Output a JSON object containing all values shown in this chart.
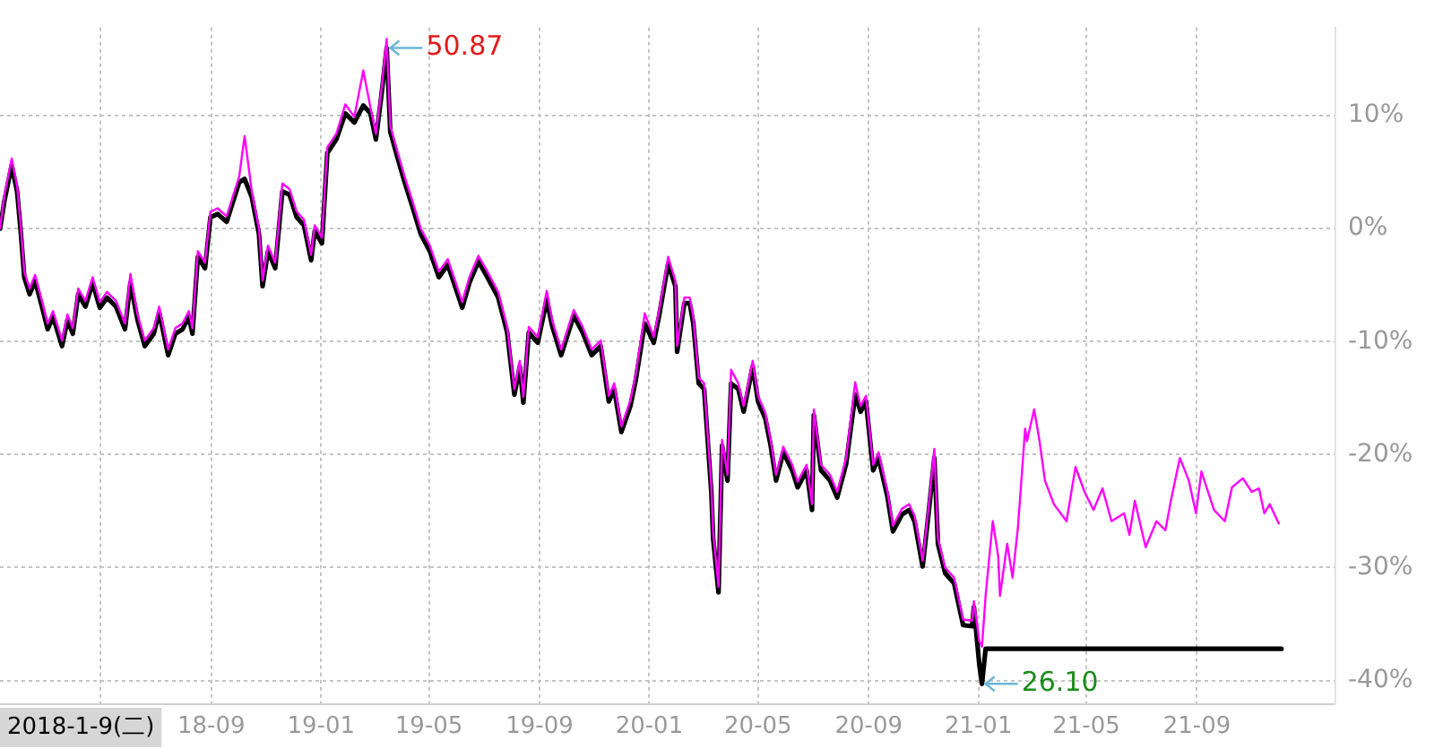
{
  "chart_data": {
    "type": "line",
    "xlim": [
      "2018-01-09",
      "2022-02-02"
    ],
    "ylim": [
      -42.1,
      17.8
    ],
    "xticks": [
      {
        "value": "2018-05-01",
        "label": null
      },
      {
        "value": "2018-09-01",
        "label": "18-09"
      },
      {
        "value": "2019-01-01",
        "label": "19-01"
      },
      {
        "value": "2019-05-01",
        "label": "19-05"
      },
      {
        "value": "2019-09-01",
        "label": "19-09"
      },
      {
        "value": "2020-01-01",
        "label": "20-01"
      },
      {
        "value": "2020-05-01",
        "label": "20-05"
      },
      {
        "value": "2020-09-01",
        "label": "20-09"
      },
      {
        "value": "2021-01-01",
        "label": "21-01"
      },
      {
        "value": "2021-05-01",
        "label": "21-05"
      },
      {
        "value": "2021-09-01",
        "label": "21-09"
      }
    ],
    "yticks": [
      {
        "value": 10,
        "label": "10%"
      },
      {
        "value": 0,
        "label": "0%"
      },
      {
        "value": -10,
        "label": "-10%"
      },
      {
        "value": -20,
        "label": "-20%"
      },
      {
        "value": -30,
        "label": "-30%"
      },
      {
        "value": -40,
        "label": "-40%"
      }
    ],
    "grid": true,
    "legend": false,
    "marker": "none",
    "annotations": [
      "2018-1-9(二)",
      {
        "text": "50.87",
        "x": "2019-03-15",
        "y": 16.0
      },
      {
        "text": "26.10",
        "x": "2021-01-05",
        "y": -40.3
      }
    ],
    "series": [
      {
        "color": "#000000",
        "x": [
          "2018-01-09",
          "2018-01-14",
          "2018-01-22",
          "2018-01-28",
          "2018-02-01",
          "2018-02-05",
          "2018-02-11",
          "2018-02-17",
          "2018-02-25",
          "2018-03-03",
          "2018-03-09",
          "2018-03-19",
          "2018-03-25",
          "2018-03-31",
          "2018-04-06",
          "2018-04-14",
          "2018-04-22",
          "2018-04-30",
          "2018-05-08",
          "2018-05-18",
          "2018-05-28",
          "2018-06-03",
          "2018-06-11",
          "2018-06-19",
          "2018-06-29",
          "2018-07-05",
          "2018-07-15",
          "2018-07-23",
          "2018-07-31",
          "2018-08-07",
          "2018-08-11",
          "2018-08-17",
          "2018-08-25",
          "2018-08-31",
          "2018-09-08",
          "2018-09-18",
          "2018-09-24",
          "2018-10-02",
          "2018-10-08",
          "2018-10-16",
          "2018-10-24",
          "2018-10-28",
          "2018-11-03",
          "2018-11-11",
          "2018-11-19",
          "2018-11-27",
          "2018-12-05",
          "2018-12-13",
          "2018-12-21",
          "2018-12-25",
          "2019-01-02",
          "2019-01-08",
          "2019-01-18",
          "2019-01-28",
          "2019-02-07",
          "2019-02-17",
          "2019-02-25",
          "2019-03-03",
          "2019-03-09",
          "2019-03-15",
          "2019-03-19",
          "2019-03-27",
          "2019-04-04",
          "2019-04-12",
          "2019-04-22",
          "2019-05-02",
          "2019-05-12",
          "2019-05-22",
          "2019-05-30",
          "2019-06-07",
          "2019-06-15",
          "2019-06-25",
          "2019-07-05",
          "2019-07-17",
          "2019-07-27",
          "2019-08-04",
          "2019-08-10",
          "2019-08-14",
          "2019-08-20",
          "2019-08-30",
          "2019-09-09",
          "2019-09-15",
          "2019-09-25",
          "2019-10-09",
          "2019-10-19",
          "2019-10-29",
          "2019-11-08",
          "2019-11-17",
          "2019-11-23",
          "2019-12-01",
          "2019-12-11",
          "2019-12-17",
          "2019-12-27",
          "2020-01-06",
          "2020-01-12",
          "2020-01-22",
          "2020-01-30",
          "2020-02-01",
          "2020-02-09",
          "2020-02-15",
          "2020-02-19",
          "2020-02-25",
          "2020-03-02",
          "2020-03-10",
          "2020-03-12",
          "2020-03-18",
          "2020-03-22",
          "2020-03-28",
          "2020-04-01",
          "2020-04-09",
          "2020-04-15",
          "2020-04-25",
          "2020-05-01",
          "2020-05-09",
          "2020-05-15",
          "2020-05-21",
          "2020-05-29",
          "2020-06-08",
          "2020-06-14",
          "2020-06-24",
          "2020-06-30",
          "2020-07-02",
          "2020-07-10",
          "2020-07-20",
          "2020-07-28",
          "2020-08-07",
          "2020-08-17",
          "2020-08-23",
          "2020-08-29",
          "2020-09-06",
          "2020-09-12",
          "2020-09-22",
          "2020-09-28",
          "2020-10-08",
          "2020-10-16",
          "2020-10-22",
          "2020-10-31",
          "2020-11-07",
          "2020-11-13",
          "2020-11-17",
          "2020-11-25",
          "2020-12-05",
          "2020-12-15",
          "2020-12-25",
          "2020-12-27",
          "2021-01-02",
          "2021-01-05",
          "2021-01-09",
          "2021-12-04"
        ],
        "values": [
          0.0,
          2.5,
          5.6,
          3.3,
          -0.2,
          -4.3,
          -5.8,
          -4.6,
          -7.0,
          -8.9,
          -7.8,
          -10.4,
          -8.1,
          -9.3,
          -5.8,
          -6.9,
          -4.8,
          -7.0,
          -6.1,
          -6.9,
          -8.9,
          -4.8,
          -8.1,
          -10.4,
          -9.3,
          -7.4,
          -11.2,
          -9.3,
          -8.9,
          -7.8,
          -9.3,
          -2.5,
          -3.5,
          1.0,
          1.3,
          0.6,
          2.1,
          4.1,
          4.4,
          2.8,
          -0.5,
          -5.1,
          -2.0,
          -3.5,
          3.3,
          3.0,
          1.0,
          0.3,
          -2.8,
          -0.2,
          -1.3,
          6.7,
          7.9,
          10.2,
          9.4,
          10.9,
          10.2,
          7.9,
          11.7,
          16.0,
          8.6,
          6.3,
          4.1,
          2.1,
          -0.5,
          -2.0,
          -4.3,
          -3.2,
          -5.1,
          -7.0,
          -4.8,
          -2.9,
          -4.3,
          -6.1,
          -9.2,
          -14.7,
          -12.2,
          -15.4,
          -9.2,
          -10.1,
          -6.3,
          -8.6,
          -11.2,
          -7.7,
          -9.2,
          -11.2,
          -10.4,
          -15.3,
          -14.2,
          -18.0,
          -15.7,
          -13.4,
          -8.4,
          -10.1,
          -7.7,
          -3.1,
          -5.1,
          -10.9,
          -6.6,
          -6.6,
          -8.4,
          -13.7,
          -14.2,
          -23.3,
          -27.4,
          -32.2,
          -19.2,
          -22.3,
          -13.7,
          -14.2,
          -16.2,
          -12.2,
          -15.3,
          -16.8,
          -19.2,
          -22.3,
          -19.8,
          -21.4,
          -22.9,
          -21.4,
          -24.9,
          -16.5,
          -21.4,
          -22.3,
          -23.8,
          -20.8,
          -14.7,
          -16.2,
          -15.3,
          -21.4,
          -20.3,
          -23.8,
          -26.8,
          -25.3,
          -24.9,
          -25.9,
          -29.9,
          -24.9,
          -20.3,
          -27.9,
          -30.5,
          -31.4,
          -35.1,
          -35.2,
          -33.5,
          -38.6,
          -40.3,
          -37.2,
          -37.2
        ]
      },
      {
        "color": "#ff00ff",
        "x": [
          "2018-01-09",
          "2018-01-14",
          "2018-01-22",
          "2018-01-28",
          "2018-02-01",
          "2018-02-05",
          "2018-02-11",
          "2018-02-17",
          "2018-02-25",
          "2018-03-03",
          "2018-03-09",
          "2018-03-19",
          "2018-03-25",
          "2018-03-31",
          "2018-04-06",
          "2018-04-14",
          "2018-04-22",
          "2018-04-30",
          "2018-05-08",
          "2018-05-18",
          "2018-05-28",
          "2018-06-03",
          "2018-06-11",
          "2018-06-19",
          "2018-06-29",
          "2018-07-05",
          "2018-07-15",
          "2018-07-23",
          "2018-07-31",
          "2018-08-07",
          "2018-08-11",
          "2018-08-17",
          "2018-08-25",
          "2018-08-31",
          "2018-09-08",
          "2018-09-18",
          "2018-09-24",
          "2018-10-02",
          "2018-10-08",
          "2018-10-16",
          "2018-10-24",
          "2018-10-28",
          "2018-11-03",
          "2018-11-11",
          "2018-11-19",
          "2018-11-27",
          "2018-12-05",
          "2018-12-13",
          "2018-12-21",
          "2018-12-25",
          "2019-01-02",
          "2019-01-08",
          "2019-01-18",
          "2019-01-28",
          "2019-02-07",
          "2019-02-17",
          "2019-02-25",
          "2019-03-03",
          "2019-03-09",
          "2019-03-15",
          "2019-03-19",
          "2019-03-27",
          "2019-04-04",
          "2019-04-12",
          "2019-04-22",
          "2019-05-02",
          "2019-05-12",
          "2019-05-22",
          "2019-05-30",
          "2019-06-07",
          "2019-06-15",
          "2019-06-25",
          "2019-07-05",
          "2019-07-17",
          "2019-07-27",
          "2019-08-04",
          "2019-08-10",
          "2019-08-14",
          "2019-08-20",
          "2019-08-30",
          "2019-09-09",
          "2019-09-15",
          "2019-09-25",
          "2019-10-09",
          "2019-10-19",
          "2019-10-29",
          "2019-11-08",
          "2019-11-17",
          "2019-11-23",
          "2019-12-01",
          "2019-12-11",
          "2019-12-17",
          "2019-12-27",
          "2020-01-06",
          "2020-01-12",
          "2020-01-22",
          "2020-01-30",
          "2020-02-01",
          "2020-02-09",
          "2020-02-15",
          "2020-02-19",
          "2020-02-25",
          "2020-03-02",
          "2020-03-10",
          "2020-03-12",
          "2020-03-18",
          "2020-03-22",
          "2020-03-28",
          "2020-04-01",
          "2020-04-09",
          "2020-04-15",
          "2020-04-25",
          "2020-05-01",
          "2020-05-09",
          "2020-05-15",
          "2020-05-21",
          "2020-05-29",
          "2020-06-08",
          "2020-06-14",
          "2020-06-24",
          "2020-06-30",
          "2020-07-02",
          "2020-07-10",
          "2020-07-20",
          "2020-07-28",
          "2020-08-07",
          "2020-08-17",
          "2020-08-23",
          "2020-08-29",
          "2020-09-06",
          "2020-09-12",
          "2020-09-22",
          "2020-09-28",
          "2020-10-08",
          "2020-10-16",
          "2020-10-22",
          "2020-10-31",
          "2020-11-07",
          "2020-11-13",
          "2020-11-17",
          "2020-11-25",
          "2020-12-05",
          "2020-12-15",
          "2020-12-25",
          "2020-12-27",
          "2021-01-02",
          "2021-01-05",
          "2021-01-09",
          "2021-01-17",
          "2021-01-23",
          "2021-01-25",
          "2021-02-02",
          "2021-02-08",
          "2021-02-14",
          "2021-02-22",
          "2021-02-24",
          "2021-03-04",
          "2021-03-10",
          "2021-03-16",
          "2021-03-26",
          "2021-04-09",
          "2021-04-19",
          "2021-04-29",
          "2021-05-09",
          "2021-05-19",
          "2021-05-29",
          "2021-06-12",
          "2021-06-18",
          "2021-06-24",
          "2021-07-06",
          "2021-07-18",
          "2021-07-28",
          "2021-08-03",
          "2021-08-13",
          "2021-08-23",
          "2021-08-31",
          "2021-09-06",
          "2021-09-20",
          "2021-10-02",
          "2021-10-10",
          "2021-10-22",
          "2021-11-01",
          "2021-11-09",
          "2021-11-15",
          "2021-11-21",
          "2021-12-01"
        ],
        "values": [
          0.0,
          3.0,
          6.2,
          3.8,
          0.3,
          -3.8,
          -5.3,
          -4.1,
          -6.5,
          -8.4,
          -7.3,
          -9.9,
          -7.6,
          -8.8,
          -5.3,
          -6.4,
          -4.3,
          -6.5,
          -5.6,
          -6.4,
          -8.4,
          -4.0,
          -7.6,
          -9.9,
          -8.8,
          -6.9,
          -10.7,
          -8.8,
          -8.4,
          -7.3,
          -8.8,
          -2.0,
          -3.0,
          1.5,
          1.8,
          1.1,
          2.6,
          4.6,
          8.2,
          3.3,
          0.0,
          -4.6,
          -1.5,
          -3.0,
          4.0,
          3.5,
          1.5,
          0.8,
          -2.3,
          0.3,
          -0.8,
          7.2,
          8.4,
          11.0,
          9.9,
          14.0,
          10.7,
          8.4,
          12.2,
          16.8,
          9.1,
          6.8,
          4.6,
          2.6,
          0.0,
          -1.5,
          -3.8,
          -2.7,
          -4.6,
          -6.5,
          -4.3,
          -2.4,
          -3.8,
          -5.6,
          -8.7,
          -14.2,
          -11.7,
          -14.9,
          -8.7,
          -9.6,
          -5.5,
          -8.1,
          -10.7,
          -7.2,
          -8.7,
          -10.7,
          -9.9,
          -14.8,
          -13.7,
          -17.5,
          -15.2,
          -12.9,
          -7.5,
          -9.6,
          -7.2,
          -2.5,
          -4.6,
          -10.4,
          -6.1,
          -6.1,
          -7.9,
          -13.2,
          -13.7,
          -22.8,
          -26.9,
          -31.7,
          -18.7,
          -21.8,
          -12.5,
          -13.7,
          -15.7,
          -11.7,
          -14.8,
          -16.3,
          -18.7,
          -21.8,
          -19.3,
          -20.9,
          -22.4,
          -20.9,
          -24.4,
          -16.0,
          -20.9,
          -21.8,
          -23.3,
          -20.3,
          -13.6,
          -15.7,
          -14.8,
          -20.9,
          -19.8,
          -23.3,
          -26.3,
          -24.8,
          -24.4,
          -25.4,
          -29.4,
          -24.4,
          -19.5,
          -27.4,
          -30.0,
          -30.9,
          -34.6,
          -34.7,
          -33.0,
          -36.5,
          -37.0,
          -32.5,
          -25.9,
          -29.0,
          -32.5,
          -27.9,
          -30.9,
          -26.4,
          -17.7,
          -18.8,
          -16.0,
          -18.8,
          -22.3,
          -24.4,
          -25.9,
          -21.1,
          -23.3,
          -24.9,
          -23.0,
          -25.9,
          -25.2,
          -27.1,
          -24.1,
          -28.2,
          -25.9,
          -26.7,
          -24.1,
          -20.3,
          -22.3,
          -25.2,
          -21.5,
          -24.9,
          -25.9,
          -22.9,
          -22.1,
          -23.3,
          -23.0,
          -25.2,
          -24.4,
          -26.1
        ]
      }
    ]
  }
}
